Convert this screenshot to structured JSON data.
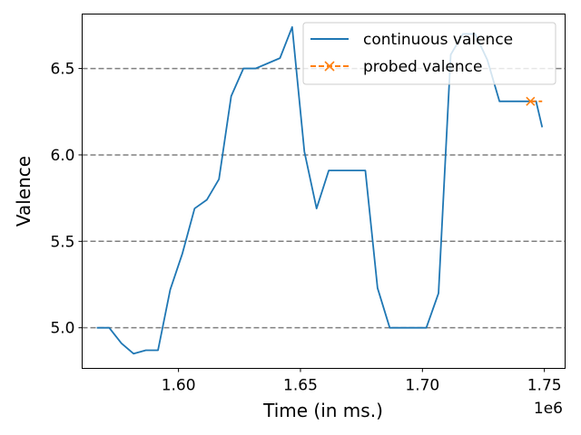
{
  "chart_data": {
    "type": "line",
    "xlabel": "Time (in ms.)",
    "ylabel": "Valence",
    "x_offset_label": "1e6",
    "xlim": [
      1.5605,
      1.7585
    ],
    "ylim": [
      4.765,
      6.815
    ],
    "x_ticks": [
      {
        "value": 1.6,
        "label": "1.60"
      },
      {
        "value": 1.65,
        "label": "1.65"
      },
      {
        "value": 1.7,
        "label": "1.70"
      },
      {
        "value": 1.75,
        "label": "1.75"
      }
    ],
    "y_ticks": [
      {
        "value": 5.0,
        "label": "5.0"
      },
      {
        "value": 5.5,
        "label": "5.5"
      },
      {
        "value": 6.0,
        "label": "6.0"
      },
      {
        "value": 6.5,
        "label": "6.5"
      }
    ],
    "grid": "horizontal dashed",
    "legend_position": "top-right",
    "series": [
      {
        "name": "continuous valence",
        "color": "#1f77b4",
        "style": "solid",
        "x": [
          1.5665,
          1.5716,
          1.5766,
          1.5816,
          1.5866,
          1.5916,
          1.5966,
          1.6016,
          1.6066,
          1.6116,
          1.6166,
          1.6216,
          1.6266,
          1.6316,
          1.6366,
          1.6416,
          1.6466,
          1.6516,
          1.6566,
          1.6616,
          1.6666,
          1.6716,
          1.6766,
          1.6816,
          1.6866,
          1.6916,
          1.6966,
          1.7016,
          1.7066,
          1.7116,
          1.7166,
          1.7216,
          1.7266,
          1.7316,
          1.7366,
          1.7416,
          1.7466,
          1.7491
        ],
        "y": [
          5.0,
          5.0,
          4.91,
          4.85,
          4.87,
          4.87,
          5.22,
          5.43,
          5.69,
          5.74,
          5.86,
          6.34,
          6.5,
          6.5,
          6.53,
          6.56,
          6.74,
          6.02,
          5.69,
          5.91,
          5.91,
          5.91,
          5.91,
          5.23,
          5.0,
          5.0,
          5.0,
          5.0,
          5.2,
          6.58,
          6.7,
          6.7,
          6.55,
          6.31,
          6.31,
          6.31,
          6.31,
          6.16
        ]
      },
      {
        "name": "probed valence",
        "color": "#ff7f0e",
        "style": "dashed",
        "marker": "x",
        "x": [
          1.7443,
          1.7491
        ],
        "y": [
          6.31,
          6.31
        ]
      }
    ]
  }
}
